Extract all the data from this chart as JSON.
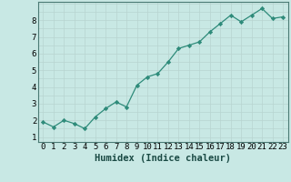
{
  "x": [
    0,
    1,
    2,
    3,
    4,
    5,
    6,
    7,
    8,
    9,
    10,
    11,
    12,
    13,
    14,
    15,
    16,
    17,
    18,
    19,
    20,
    21,
    22,
    23
  ],
  "y": [
    1.9,
    1.6,
    2.0,
    1.8,
    1.5,
    2.2,
    2.7,
    3.1,
    2.8,
    4.1,
    4.6,
    4.8,
    5.5,
    6.3,
    6.5,
    6.7,
    7.3,
    7.8,
    8.3,
    7.9,
    8.3,
    8.7,
    8.1,
    8.2
  ],
  "line_color": "#2e8b7a",
  "marker_color": "#2e8b7a",
  "bg_color": "#c8e8e4",
  "grid_color": "#b8d4d0",
  "xlabel": "Humidex (Indice chaleur)",
  "ylim": [
    0.7,
    9.1
  ],
  "xlim": [
    -0.5,
    23.5
  ],
  "yticks": [
    1,
    2,
    3,
    4,
    5,
    6,
    7,
    8
  ],
  "xticks": [
    0,
    1,
    2,
    3,
    4,
    5,
    6,
    7,
    8,
    9,
    10,
    11,
    12,
    13,
    14,
    15,
    16,
    17,
    18,
    19,
    20,
    21,
    22,
    23
  ],
  "tick_fontsize": 6.5,
  "xlabel_fontsize": 7.5
}
